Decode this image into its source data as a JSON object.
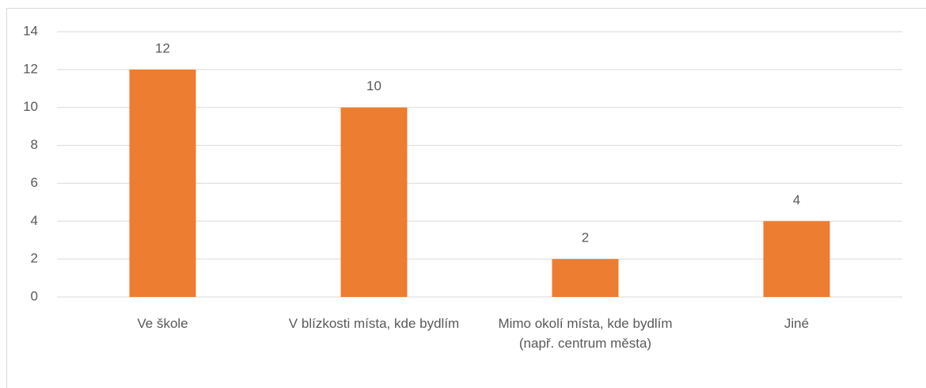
{
  "chart_data": {
    "type": "bar",
    "categories": [
      "Ve škole",
      "V blízkosti místa, kde bydlím",
      "Mimo okolí místa, kde bydlím (např. centrum města)",
      "Jiné"
    ],
    "values": [
      12,
      10,
      2,
      4
    ],
    "color": "#ed7d31",
    "ylim": [
      0,
      14
    ],
    "yticks": [
      0,
      2,
      4,
      6,
      8,
      10,
      12,
      14
    ],
    "grid": true
  }
}
